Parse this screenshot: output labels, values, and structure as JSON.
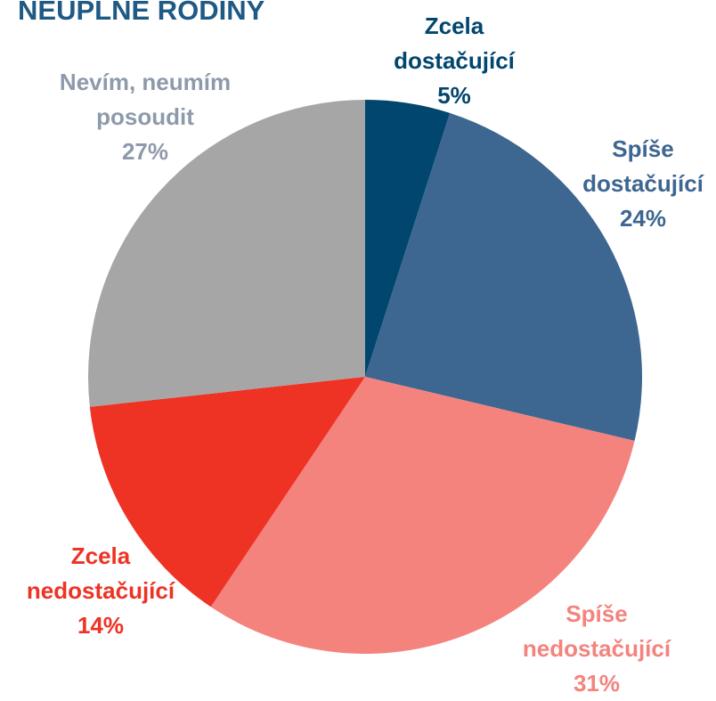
{
  "chart_data": {
    "type": "pie",
    "title": "NEÚPLNÉ RODINY",
    "categories": [
      "Zcela\ndostačující",
      "Spíše\ndostačující",
      "Spíše\nnedostačující",
      "Zcela\nnedostačující",
      "Nevím, neumím\nposoudit"
    ],
    "values": [
      5,
      24,
      31,
      14,
      27
    ],
    "value_labels": [
      "5%",
      "24%",
      "31%",
      "14%",
      "27%"
    ],
    "colors": [
      "#00466e",
      "#3d6690",
      "#f4837d",
      "#ee3224",
      "#a6a6a6"
    ],
    "label_colors": [
      "#00466e",
      "#3d6690",
      "#f4837d",
      "#ee3224",
      "#8e9aab"
    ]
  }
}
